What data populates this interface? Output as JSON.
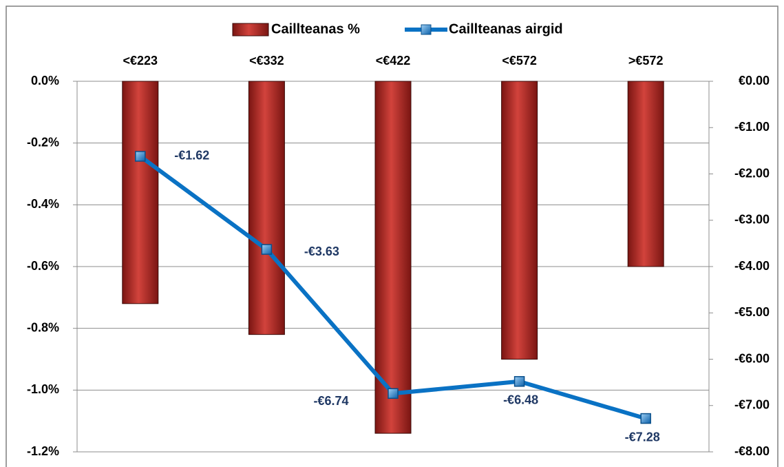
{
  "chart_data": {
    "type": "bar",
    "categories": [
      "<€223",
      "<€332",
      "<€422",
      "<€572",
      ">€572"
    ],
    "series": [
      {
        "name": "Caillteanas %",
        "type": "bar",
        "color": "#b02a24",
        "values": [
          -0.72,
          -0.82,
          -1.14,
          -0.9,
          -0.6
        ]
      },
      {
        "name": "Caillteanas airgid",
        "type": "line",
        "axis": "y2",
        "color": "#0a72c4",
        "values": [
          -1.62,
          -3.63,
          -6.74,
          -6.48,
          -7.28
        ],
        "value_labels": [
          "-€1.62",
          "-€3.63",
          "-€6.74",
          "-€6.48",
          "-€7.28"
        ]
      }
    ],
    "ylim": [
      -1.2,
      0
    ],
    "yticks": [
      {
        "value": 0,
        "label": "0.0%"
      },
      {
        "value": -0.2,
        "label": "-0.2%"
      },
      {
        "value": -0.4,
        "label": "-0.4%"
      },
      {
        "value": -0.6,
        "label": "-0.6%"
      },
      {
        "value": -0.8,
        "label": "-0.8%"
      },
      {
        "value": -1.0,
        "label": "-1.0%"
      },
      {
        "value": -1.2,
        "label": "-1.2%"
      }
    ],
    "y2lim": [
      -8,
      0
    ],
    "y2ticks": [
      {
        "value": 0,
        "label": "€0.00"
      },
      {
        "value": -1,
        "label": "-€1.00"
      },
      {
        "value": -2,
        "label": "-€2.00"
      },
      {
        "value": -3,
        "label": "-€3.00"
      },
      {
        "value": -4,
        "label": "-€4.00"
      },
      {
        "value": -5,
        "label": "-€5.00"
      },
      {
        "value": -6,
        "label": "-€6.00"
      },
      {
        "value": -7,
        "label": "-€7.00"
      },
      {
        "value": -8,
        "label": "-€8.00"
      }
    ],
    "grid": true,
    "legend": "top"
  }
}
